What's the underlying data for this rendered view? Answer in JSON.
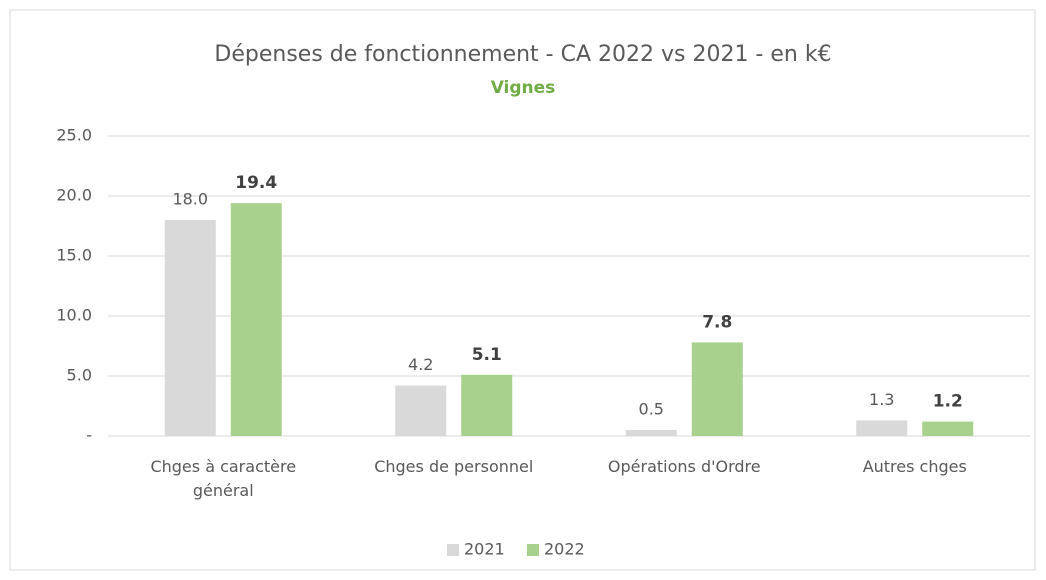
{
  "chart_data": {
    "type": "bar",
    "title": "Dépenses de fonctionnement - CA 2022 vs 2021 - en k€",
    "subtitle": "Vignes",
    "categories": [
      "Chges à caractère général",
      "Chges de personnel",
      "Opérations d'Ordre",
      "Autres chges"
    ],
    "series": [
      {
        "name": "2021",
        "color": "#d9d9d9",
        "values": [
          18.0,
          4.2,
          0.5,
          1.3
        ],
        "value_labels": [
          "18.0",
          "4.2",
          "0.5",
          "1.3"
        ]
      },
      {
        "name": "2022",
        "color": "#a9d18e",
        "values": [
          19.4,
          5.1,
          7.8,
          1.2
        ],
        "value_labels": [
          "19.4",
          "5.1",
          "7.8",
          "1.2"
        ]
      }
    ],
    "ylim": [
      0,
      25
    ],
    "yticks": [
      {
        "value": 0,
        "label": "-"
      },
      {
        "value": 5,
        "label": "5.0"
      },
      {
        "value": 10,
        "label": "10.0"
      },
      {
        "value": 15,
        "label": "15.0"
      },
      {
        "value": 20,
        "label": "20.0"
      },
      {
        "value": 25,
        "label": "25.0"
      }
    ],
    "grid": true,
    "legend": "bottom"
  }
}
